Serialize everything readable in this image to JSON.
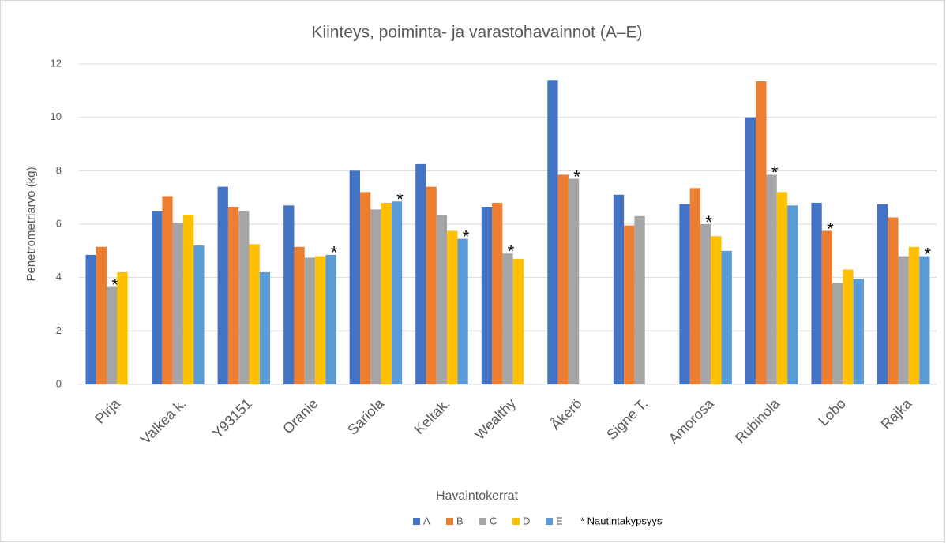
{
  "chart_data": {
    "type": "bar",
    "title": "Kiinteys, poiminta- ja varastohavainnot (A–E)",
    "x_label": "Havaintokerrat",
    "y_label": "Penetrometriarvo (kg)",
    "categories": [
      "Pirja",
      "Valkea k.",
      "Y93151",
      "Oranie",
      "Sariola",
      "Keltak.",
      "Wealthy",
      "Åkerö",
      "Signe T.",
      "Amorosa",
      "Rubinola",
      "Lobo",
      "Rajka"
    ],
    "series": [
      {
        "name": "A",
        "color": "#4472c4",
        "values": [
          4.85,
          6.5,
          7.4,
          6.7,
          8.0,
          8.25,
          6.65,
          11.4,
          7.1,
          6.75,
          10.0,
          6.8,
          6.75
        ],
        "markers": [
          null,
          null,
          null,
          null,
          null,
          null,
          null,
          null,
          null,
          null,
          null,
          null,
          null
        ]
      },
      {
        "name": "B",
        "color": "#ed7d31",
        "values": [
          5.15,
          7.05,
          6.65,
          5.15,
          7.2,
          7.4,
          6.8,
          7.85,
          5.95,
          7.35,
          11.35,
          5.75,
          6.25
        ],
        "markers": [
          null,
          null,
          null,
          null,
          null,
          null,
          null,
          null,
          null,
          null,
          null,
          "*",
          null
        ]
      },
      {
        "name": "C",
        "color": "#a5a5a5",
        "values": [
          3.65,
          6.05,
          6.5,
          4.75,
          6.55,
          6.35,
          4.9,
          7.7,
          6.3,
          6.0,
          7.85,
          3.8,
          4.8
        ],
        "markers": [
          "*",
          null,
          null,
          null,
          null,
          null,
          "*",
          "*",
          null,
          "*",
          "*",
          null,
          null
        ]
      },
      {
        "name": "D",
        "color": "#ffc000",
        "values": [
          4.2,
          6.35,
          5.25,
          4.8,
          6.8,
          5.75,
          4.7,
          null,
          null,
          5.55,
          7.2,
          4.3,
          5.15
        ],
        "markers": [
          null,
          null,
          null,
          null,
          null,
          null,
          null,
          null,
          null,
          null,
          null,
          null,
          null
        ]
      },
      {
        "name": "E",
        "color": "#5b9bd5",
        "values": [
          null,
          5.2,
          4.2,
          4.85,
          6.85,
          5.45,
          null,
          null,
          null,
          5.0,
          6.7,
          3.95,
          4.8
        ],
        "markers": [
          null,
          null,
          null,
          "*",
          "*",
          "*",
          null,
          null,
          null,
          null,
          null,
          null,
          "*"
        ]
      }
    ],
    "marker_legend": "* Nautintakypsyys",
    "ylim": [
      0,
      12
    ],
    "yticks": [
      0,
      2,
      4,
      6,
      8,
      10,
      12
    ],
    "grid": true,
    "legend": "bottom"
  }
}
